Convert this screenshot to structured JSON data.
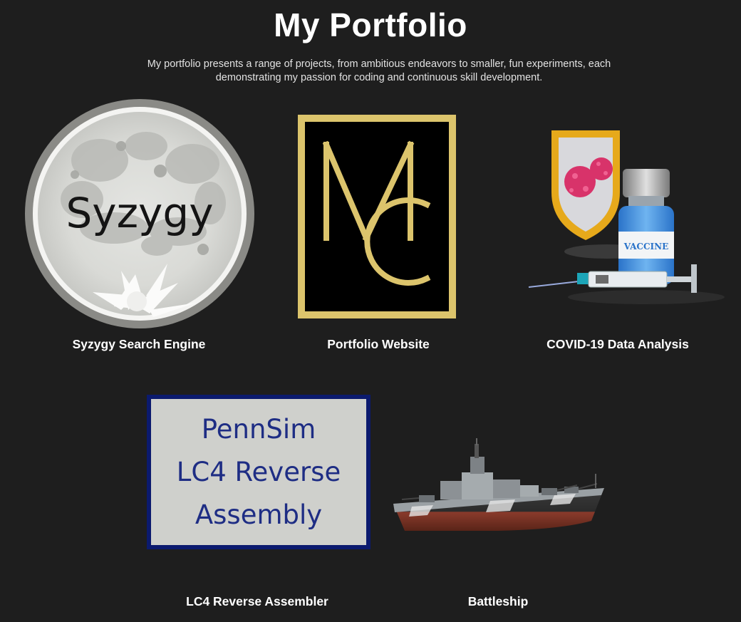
{
  "header": {
    "title": "My Portfolio",
    "intro": "My portfolio presents a range of projects, from ambitious endeavors to smaller, fun experiments, each demonstrating my passion for coding and continuous skill development."
  },
  "projects": [
    {
      "label": "Syzygy Search Engine",
      "image_text": "Syzygy",
      "icon": "moon-logo-icon"
    },
    {
      "label": "Portfolio Website",
      "image_text": "MC",
      "icon": "mc-monogram-icon"
    },
    {
      "label": "COVID-19 Data Analysis",
      "image_text": "VACCINE",
      "icon": "vaccine-shield-icon"
    },
    {
      "label": "LC4 Reverse Assembler",
      "image_lines": [
        "PennSim",
        "LC4 Reverse",
        "Assembly"
      ],
      "icon": "pennsim-logo-icon"
    },
    {
      "label": "Battleship",
      "icon": "battleship-icon"
    }
  ],
  "colors": {
    "background": "#1e1e1e",
    "gold": "#dcc46c",
    "navy": "#0b1a6e",
    "text": "#ffffff"
  }
}
